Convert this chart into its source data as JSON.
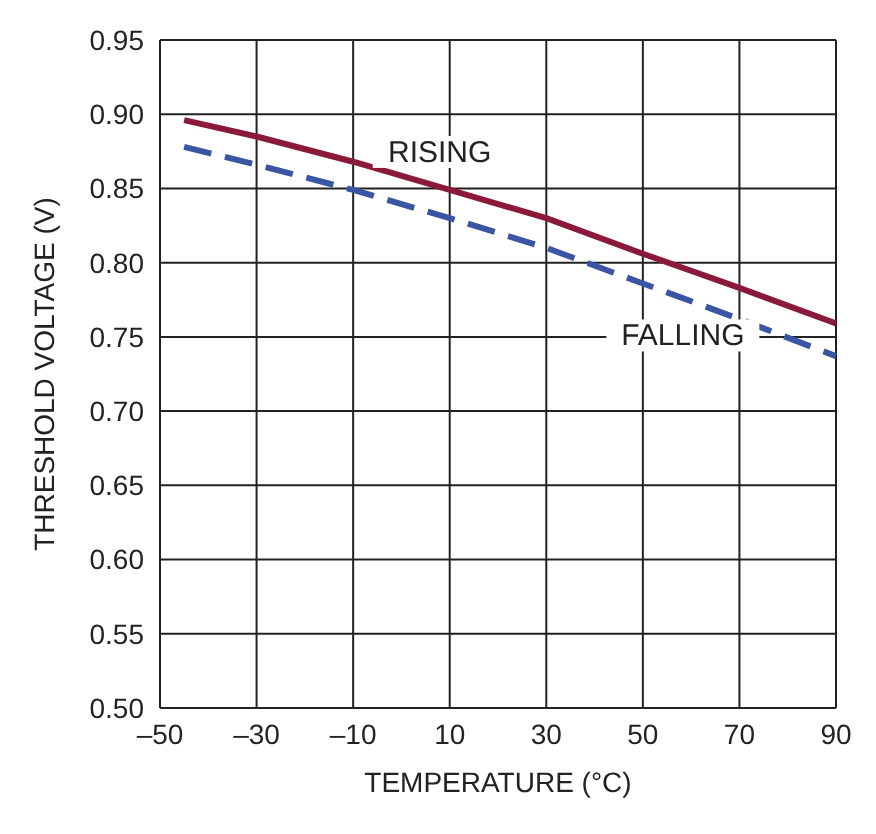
{
  "chart_data": {
    "type": "line",
    "xlabel": "TEMPERATURE (°C)",
    "ylabel": "THRESHOLD VOLTAGE (V)",
    "series": [
      {
        "name": "RISING",
        "color": "#8b1a3a",
        "line_style": "solid",
        "x": [
          -45,
          -30,
          -10,
          10,
          30,
          50,
          70,
          90
        ],
        "values": [
          0.896,
          0.885,
          0.868,
          0.849,
          0.83,
          0.806,
          0.783,
          0.759
        ]
      },
      {
        "name": "FALLING",
        "color": "#3a55a4",
        "line_style": "dashed",
        "x": [
          -45,
          -30,
          -10,
          10,
          30,
          50,
          70,
          90
        ],
        "values": [
          0.878,
          0.866,
          0.849,
          0.83,
          0.81,
          0.786,
          0.762,
          0.737
        ]
      }
    ],
    "xlim": [
      -50,
      90
    ],
    "xticks": [
      {
        "value": -50,
        "label": "–50"
      },
      {
        "value": -30,
        "label": "–30"
      },
      {
        "value": -10,
        "label": "–10"
      },
      10,
      30,
      50,
      70,
      90
    ],
    "ylim": [
      0.5,
      0.95
    ],
    "yticks": [
      {
        "value": 0.5,
        "label": "0.50"
      },
      {
        "value": 0.55,
        "label": "0.55"
      },
      {
        "value": 0.6,
        "label": "0.60"
      },
      {
        "value": 0.65,
        "label": "0.65"
      },
      {
        "value": 0.7,
        "label": "0.70"
      },
      {
        "value": 0.75,
        "label": "0.75"
      },
      {
        "value": 0.8,
        "label": "0.80"
      },
      {
        "value": 0.85,
        "label": "0.85"
      },
      {
        "value": 0.9,
        "label": "0.90"
      },
      {
        "value": 0.95,
        "label": "0.95"
      }
    ],
    "grid": true,
    "marker": "none"
  }
}
